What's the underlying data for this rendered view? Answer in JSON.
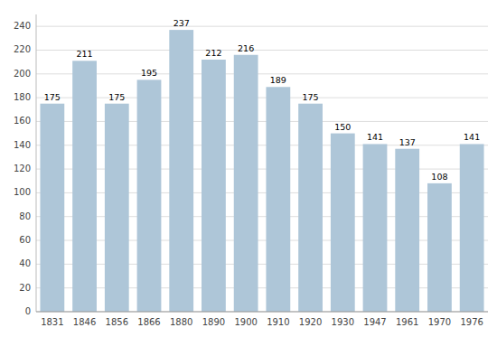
{
  "chart_data": {
    "type": "bar",
    "categories": [
      "1831",
      "1846",
      "1856",
      "1866",
      "1880",
      "1890",
      "1900",
      "1910",
      "1920",
      "1930",
      "1947",
      "1961",
      "1970",
      "1976"
    ],
    "values": [
      175,
      211,
      175,
      195,
      237,
      212,
      216,
      189,
      175,
      150,
      141,
      137,
      108,
      141
    ],
    "color": "#aec6d8",
    "ylim": [
      0,
      250
    ],
    "yticks": [
      0,
      20,
      40,
      60,
      80,
      100,
      120,
      140,
      160,
      180,
      200,
      220,
      240
    ],
    "grid": true,
    "data_labels": true
  }
}
